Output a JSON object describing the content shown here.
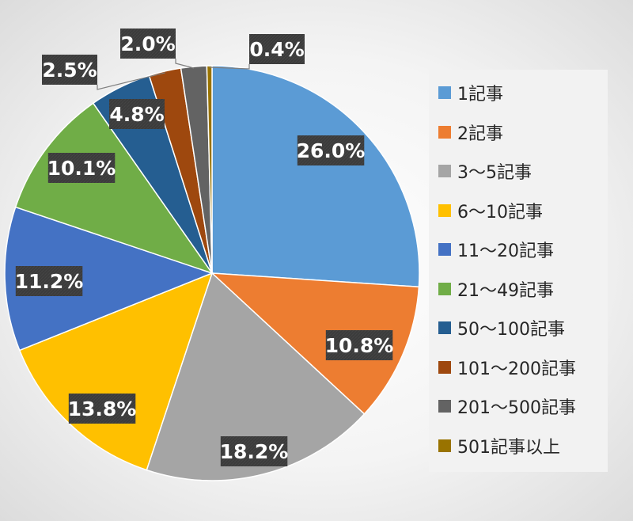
{
  "chart_data": {
    "type": "pie",
    "categories": [
      "1記事",
      "2記事",
      "3～5記事",
      "6～10記事",
      "11～20記事",
      "21～49記事",
      "50～100記事",
      "101～200記事",
      "201～500記事",
      "501記事以上"
    ],
    "values": [
      26.0,
      10.8,
      18.2,
      13.8,
      11.2,
      10.1,
      4.8,
      2.5,
      2.0,
      0.4
    ],
    "data_labels": [
      "26.0%",
      "10.8%",
      "18.2%",
      "13.8%",
      "11.2%",
      "10.1%",
      "4.8%",
      "2.5%",
      "2.0%",
      "0.4%"
    ],
    "colors": [
      "#5b9bd5",
      "#ed7d31",
      "#a5a5a5",
      "#ffc000",
      "#4472c4",
      "#70ad47",
      "#255e91",
      "#9e480e",
      "#636363",
      "#997300"
    ],
    "label_style": "dark-boxes-with-white-text",
    "legend_position": "right",
    "start_angle": "12 o'clock, clockwise"
  }
}
